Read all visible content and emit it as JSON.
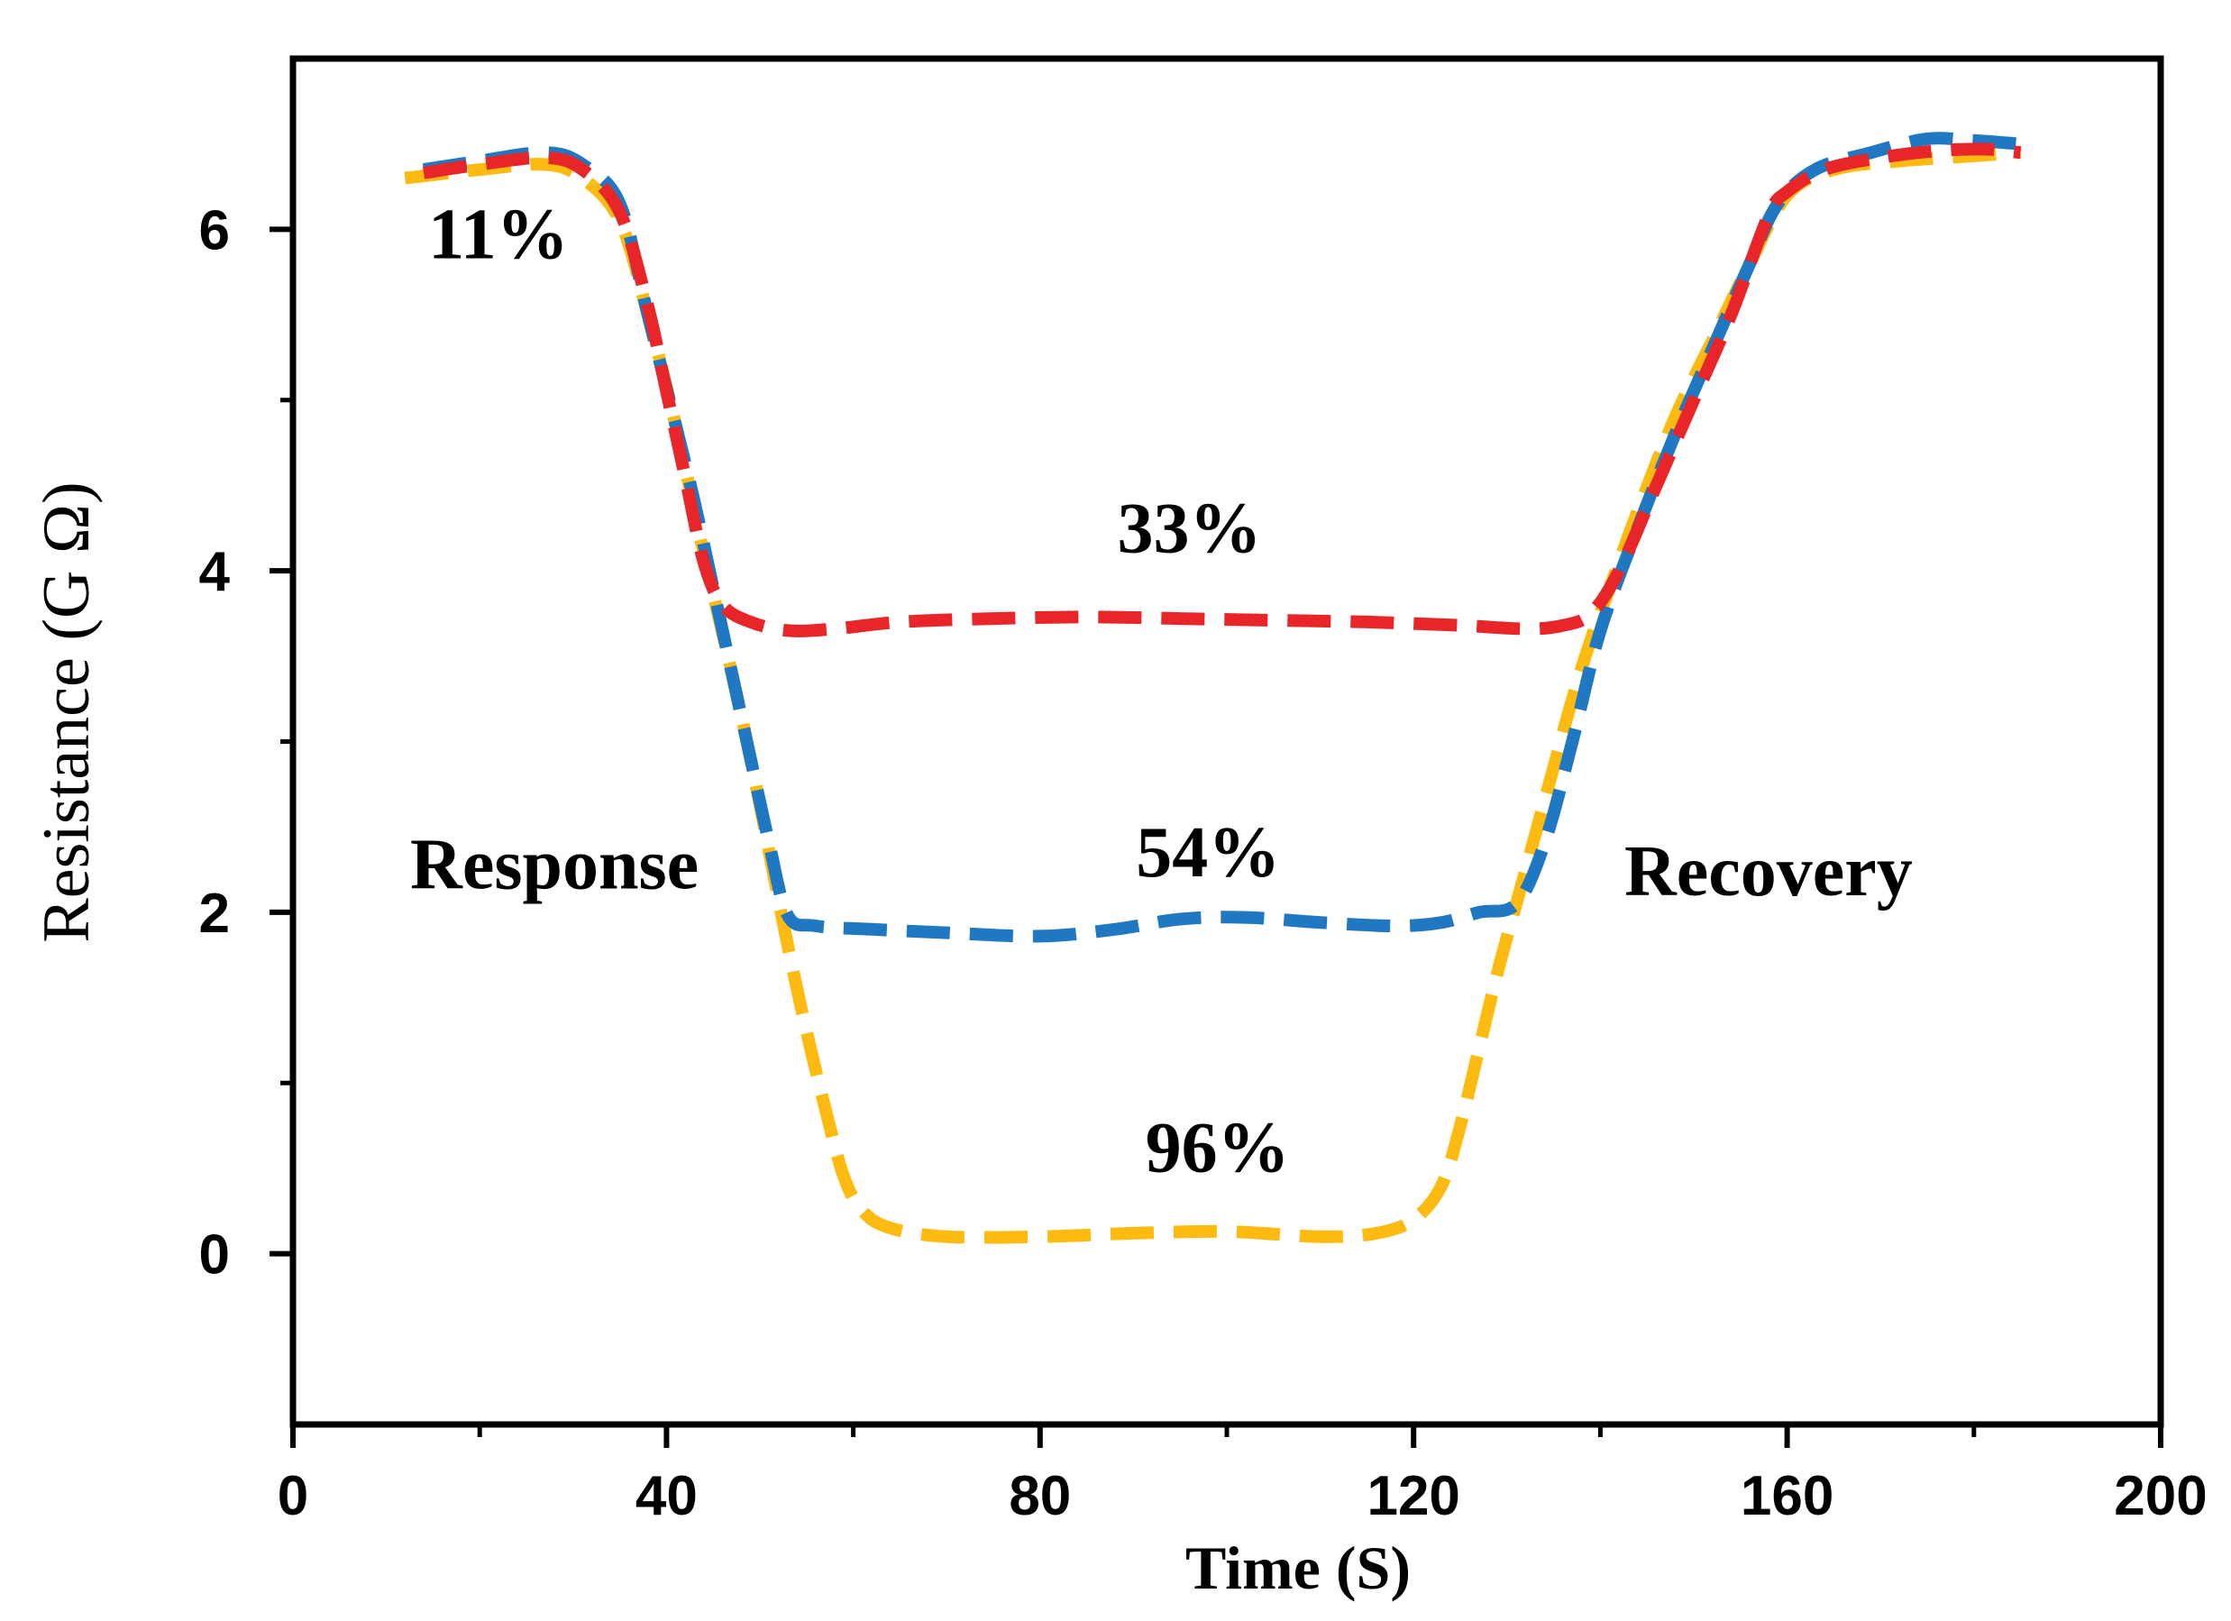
{
  "chart_data": {
    "type": "line",
    "title": "",
    "xlabel": "Time (S)",
    "ylabel": "Resistance (G Ω)",
    "xlim": [
      0,
      200
    ],
    "ylim": [
      -1,
      7
    ],
    "xticks": [
      0,
      40,
      80,
      120,
      160,
      200
    ],
    "yticks": [
      0,
      2,
      4,
      6
    ],
    "grid": false,
    "series": [
      {
        "name": "33%",
        "color": "#e8262a",
        "points": [
          [
            14,
            6.33
          ],
          [
            20,
            6.38
          ],
          [
            27,
            6.42
          ],
          [
            31,
            6.35
          ],
          [
            35,
            6.1
          ],
          [
            38,
            5.55
          ],
          [
            40,
            5.05
          ],
          [
            42,
            4.55
          ],
          [
            44,
            4.05
          ],
          [
            46,
            3.8
          ],
          [
            49,
            3.7
          ],
          [
            53,
            3.65
          ],
          [
            58,
            3.66
          ],
          [
            65,
            3.7
          ],
          [
            75,
            3.72
          ],
          [
            85,
            3.73
          ],
          [
            95,
            3.72
          ],
          [
            105,
            3.71
          ],
          [
            115,
            3.7
          ],
          [
            125,
            3.68
          ],
          [
            132,
            3.66
          ],
          [
            136,
            3.68
          ],
          [
            139,
            3.75
          ],
          [
            142,
            4.0
          ],
          [
            146,
            4.5
          ],
          [
            150,
            5.0
          ],
          [
            154,
            5.5
          ],
          [
            158,
            6.08
          ],
          [
            160,
            6.22
          ],
          [
            164,
            6.35
          ],
          [
            170,
            6.42
          ],
          [
            176,
            6.46
          ],
          [
            181,
            6.47
          ],
          [
            185,
            6.45
          ]
        ]
      },
      {
        "name": "54%",
        "color": "#1f78c1",
        "points": [
          [
            14,
            6.35
          ],
          [
            20,
            6.4
          ],
          [
            27,
            6.45
          ],
          [
            31,
            6.38
          ],
          [
            35,
            6.15
          ],
          [
            38,
            5.5
          ],
          [
            41,
            4.85
          ],
          [
            43,
            4.4
          ],
          [
            45,
            3.9
          ],
          [
            47,
            3.4
          ],
          [
            49,
            2.9
          ],
          [
            51,
            2.4
          ],
          [
            53,
            1.98
          ],
          [
            56,
            1.92
          ],
          [
            62,
            1.9
          ],
          [
            70,
            1.88
          ],
          [
            80,
            1.86
          ],
          [
            88,
            1.9
          ],
          [
            95,
            1.96
          ],
          [
            102,
            1.97
          ],
          [
            110,
            1.94
          ],
          [
            118,
            1.92
          ],
          [
            123,
            1.94
          ],
          [
            127,
            2.0
          ],
          [
            131,
            2.05
          ],
          [
            134,
            2.4
          ],
          [
            137,
            3.0
          ],
          [
            140,
            3.65
          ],
          [
            144,
            4.25
          ],
          [
            148,
            4.8
          ],
          [
            152,
            5.3
          ],
          [
            156,
            5.8
          ],
          [
            159,
            6.15
          ],
          [
            163,
            6.35
          ],
          [
            169,
            6.45
          ],
          [
            175,
            6.53
          ],
          [
            180,
            6.52
          ],
          [
            185,
            6.5
          ]
        ]
      },
      {
        "name": "96%",
        "color": "#fdbb12",
        "points": [
          [
            12,
            6.3
          ],
          [
            20,
            6.35
          ],
          [
            27,
            6.38
          ],
          [
            31,
            6.3
          ],
          [
            35,
            6.05
          ],
          [
            38,
            5.5
          ],
          [
            41,
            4.85
          ],
          [
            44,
            4.1
          ],
          [
            47,
            3.4
          ],
          [
            49,
            2.9
          ],
          [
            51,
            2.35
          ],
          [
            53,
            1.8
          ],
          [
            55,
            1.3
          ],
          [
            57,
            0.85
          ],
          [
            59,
            0.45
          ],
          [
            61,
            0.25
          ],
          [
            64,
            0.15
          ],
          [
            70,
            0.1
          ],
          [
            80,
            0.1
          ],
          [
            90,
            0.12
          ],
          [
            100,
            0.13
          ],
          [
            110,
            0.1
          ],
          [
            116,
            0.12
          ],
          [
            120,
            0.2
          ],
          [
            123,
            0.4
          ],
          [
            125,
            0.75
          ],
          [
            127,
            1.2
          ],
          [
            129,
            1.65
          ],
          [
            131,
            2.05
          ],
          [
            133,
            2.45
          ],
          [
            135,
            2.85
          ],
          [
            137,
            3.25
          ],
          [
            139,
            3.6
          ],
          [
            141,
            3.9
          ],
          [
            144,
            4.35
          ],
          [
            148,
            4.9
          ],
          [
            152,
            5.35
          ],
          [
            156,
            5.8
          ],
          [
            160,
            6.2
          ],
          [
            165,
            6.35
          ],
          [
            172,
            6.4
          ],
          [
            180,
            6.43
          ],
          [
            185,
            6.45
          ]
        ]
      }
    ],
    "annotations": [
      {
        "text": "11%",
        "x": 22,
        "y": 5.83
      },
      {
        "text": "33%",
        "x": 96,
        "y": 4.11
      },
      {
        "text": "54%",
        "x": 98,
        "y": 2.21
      },
      {
        "text": "96%",
        "x": 99,
        "y": 0.48
      },
      {
        "text": "Response",
        "x": 28,
        "y": 2.14
      },
      {
        "text": "Recovery",
        "x": 158,
        "y": 2.1
      }
    ]
  }
}
